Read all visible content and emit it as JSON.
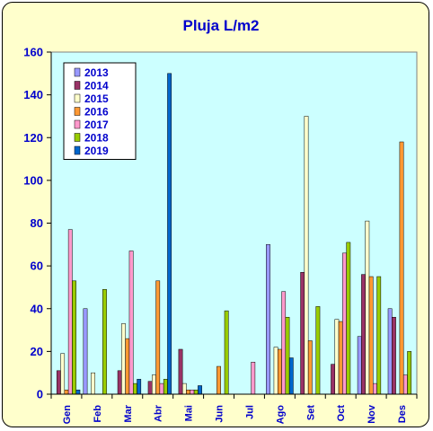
{
  "chart_data": {
    "type": "bar",
    "title": "Pluja L/m2",
    "xlabel": "",
    "ylabel": "",
    "ylim": [
      0,
      160
    ],
    "yticks": [
      0,
      20,
      40,
      60,
      80,
      100,
      120,
      140,
      160
    ],
    "grid": false,
    "legend_position": "top-left",
    "categories": [
      "Gen",
      "Feb",
      "Mar",
      "Abr",
      "Mai",
      "Jun",
      "Jul",
      "Ago",
      "Set",
      "Oct",
      "Nov",
      "Des"
    ],
    "series": [
      {
        "name": "2013",
        "color": "#9999ff",
        "values": [
          0,
          40,
          0,
          0,
          0,
          0,
          0,
          70,
          0,
          0,
          27,
          40
        ]
      },
      {
        "name": "2014",
        "color": "#993366",
        "values": [
          11,
          0,
          11,
          6,
          21,
          0,
          0,
          0,
          57,
          14,
          56,
          36
        ]
      },
      {
        "name": "2015",
        "color": "#ffffcc",
        "values": [
          19,
          10,
          33,
          9,
          5,
          0,
          0,
          22,
          130,
          35,
          81,
          0
        ]
      },
      {
        "name": "2016",
        "color": "#ff9933",
        "values": [
          2,
          0,
          26,
          53,
          2,
          13,
          0,
          21,
          25,
          34,
          55,
          118
        ]
      },
      {
        "name": "2017",
        "color": "#ff99cc",
        "values": [
          77,
          0,
          67,
          5,
          2,
          0,
          15,
          48,
          0,
          66,
          5,
          9
        ]
      },
      {
        "name": "2018",
        "color": "#99cc00",
        "values": [
          53,
          49,
          5,
          7,
          2,
          39,
          0,
          36,
          41,
          71,
          55,
          20
        ]
      },
      {
        "name": "2019",
        "color": "#0066cc",
        "values": [
          2,
          0,
          7,
          150,
          4,
          0,
          0,
          17,
          0,
          0,
          0,
          0
        ]
      }
    ]
  }
}
